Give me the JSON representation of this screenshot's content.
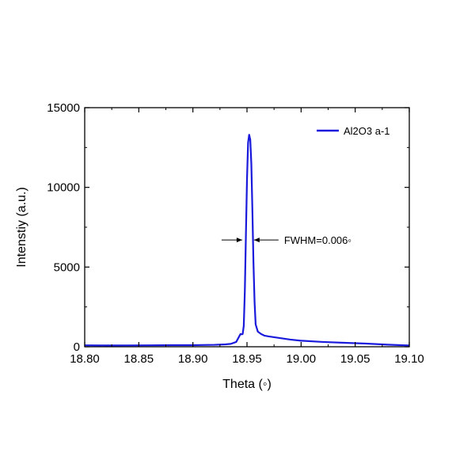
{
  "chart_data": {
    "type": "line",
    "title": "",
    "xlabel": "Theta (◦)",
    "ylabel": "Intenstiy (a.u.)",
    "xlim": [
      18.8,
      19.1
    ],
    "ylim": [
      0,
      15000
    ],
    "x_ticks": [
      18.8,
      18.85,
      18.9,
      18.95,
      19.0,
      19.05,
      19.1
    ],
    "x_tick_labels": [
      "18.80",
      "18.85",
      "18.90",
      "18.95",
      "19.00",
      "19.05",
      "19.10"
    ],
    "y_ticks": [
      0,
      5000,
      10000,
      15000
    ],
    "y_tick_labels": [
      "0",
      "5000",
      "10000",
      "15000"
    ],
    "grid": false,
    "legend": {
      "position": "top-right",
      "entries": [
        "Al2O3 a-1"
      ]
    },
    "series": [
      {
        "name": "Al2O3 a-1",
        "color": "#1a1adc",
        "x": [
          18.8,
          18.82,
          18.84,
          18.86,
          18.88,
          18.9,
          18.92,
          18.93,
          18.935,
          18.94,
          18.942,
          18.944,
          18.945,
          18.946,
          18.947,
          18.948,
          18.949,
          18.95,
          18.951,
          18.952,
          18.953,
          18.954,
          18.955,
          18.956,
          18.957,
          18.958,
          18.96,
          18.963,
          18.966,
          18.97,
          18.975,
          18.98,
          18.99,
          19.0,
          19.02,
          19.04,
          19.06,
          19.08,
          19.1
        ],
        "y": [
          90,
          80,
          85,
          90,
          100,
          100,
          120,
          150,
          180,
          300,
          550,
          800,
          780,
          800,
          1300,
          3500,
          7000,
          10500,
          12800,
          13300,
          13000,
          11500,
          8500,
          5200,
          2800,
          1400,
          950,
          800,
          700,
          650,
          600,
          550,
          450,
          380,
          300,
          250,
          200,
          130,
          80
        ]
      }
    ],
    "annotations": [
      {
        "text": "FWHM=0.006◦",
        "arrows_at_x": [
          18.947,
          18.955
        ],
        "y": 6700
      }
    ]
  }
}
